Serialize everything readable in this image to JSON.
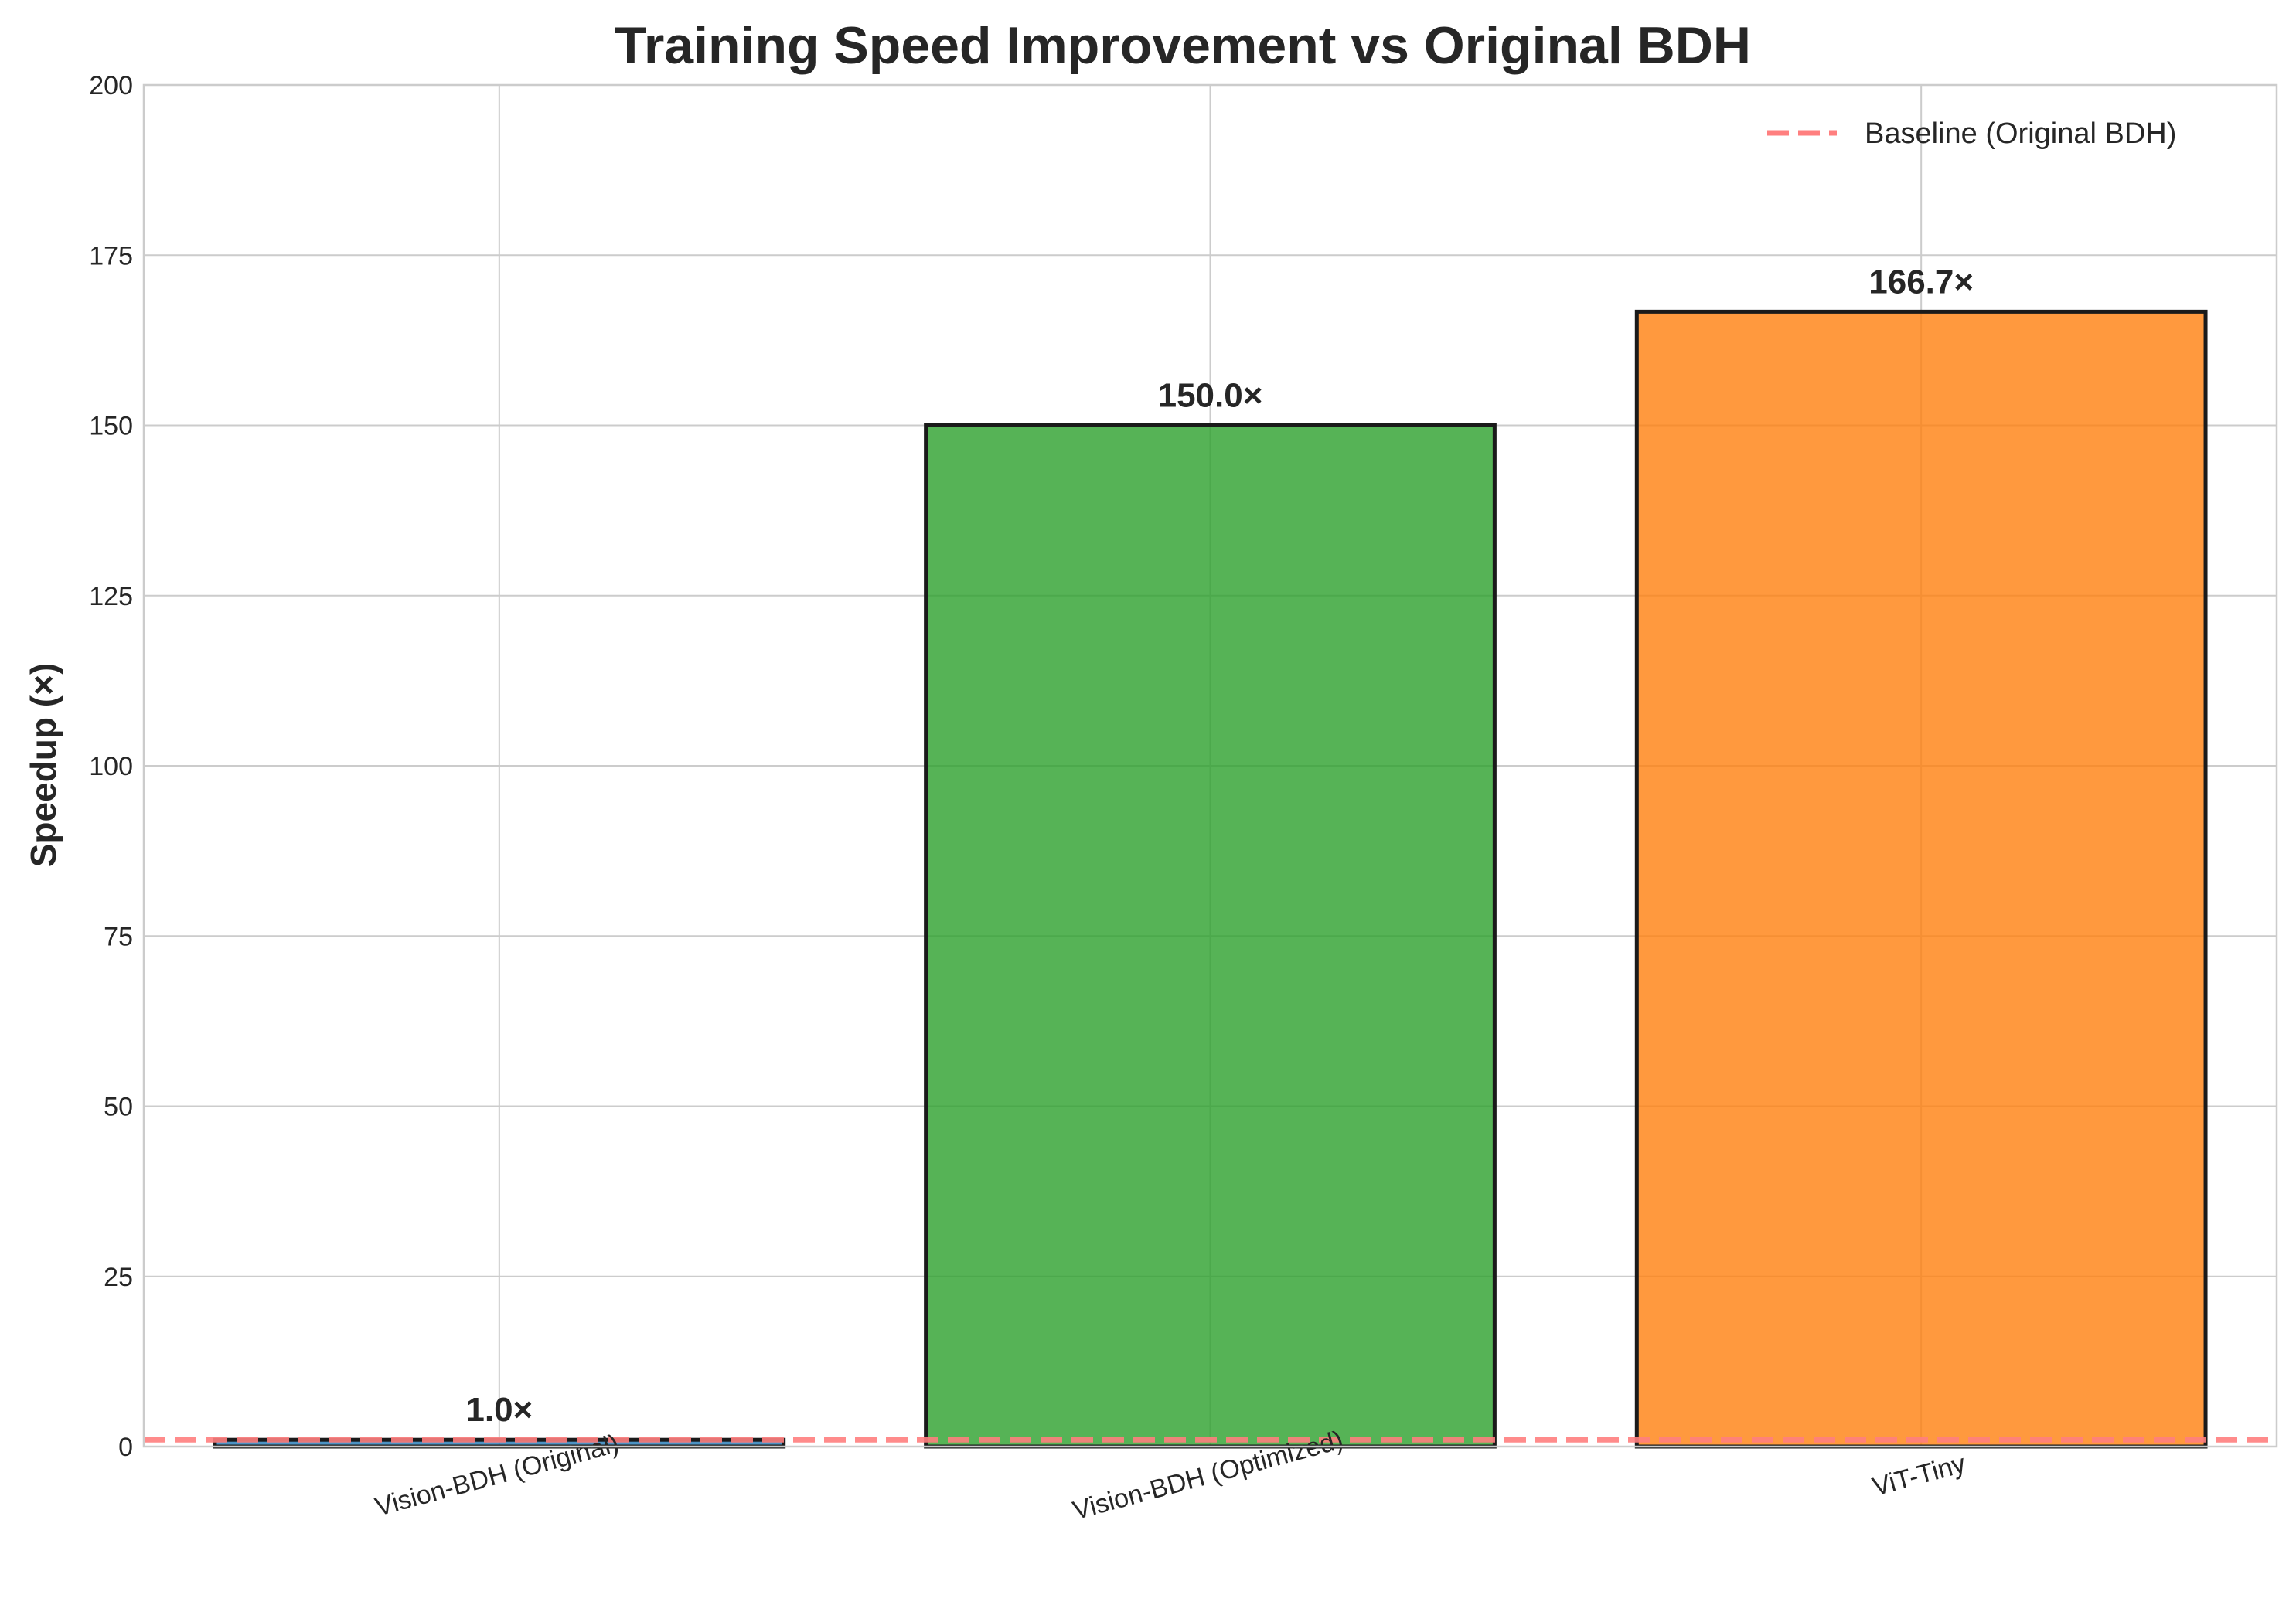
{
  "chart_data": {
    "type": "bar",
    "title": "Training Speed Improvement vs Original BDH",
    "xlabel": "",
    "ylabel": "Speedup (×)",
    "categories": [
      "Vision-BDH (Original)",
      "Vision-BDH (Optimized)",
      "ViT-Tiny"
    ],
    "values": [
      1.0,
      150.0,
      166.7
    ],
    "value_labels": [
      "1.0×",
      "150.0×",
      "166.7×"
    ],
    "bar_colors": [
      "#1f77b4",
      "#2ca02c",
      "#ff7f0e"
    ],
    "ylim": [
      0,
      200
    ],
    "yticks": [
      0,
      25,
      50,
      75,
      100,
      125,
      150,
      175,
      200
    ],
    "grid": true,
    "baseline": {
      "value": 1.0,
      "label": "Baseline (Original BDH)",
      "color": "#ff7f7f",
      "style": "dashed"
    },
    "legend_position": "top-right"
  }
}
